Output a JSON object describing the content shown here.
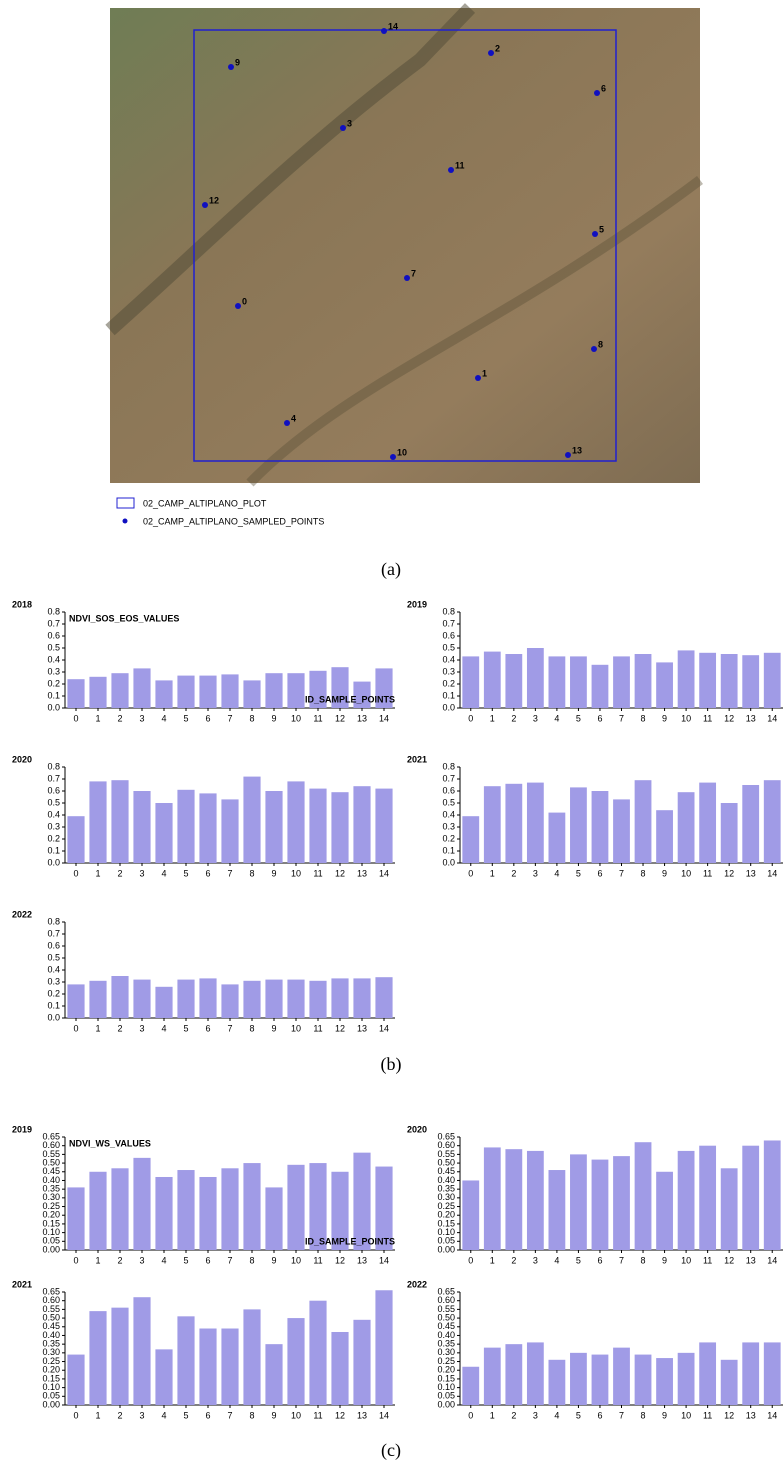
{
  "figure": {
    "map": {
      "points": [
        "0",
        "1",
        "2",
        "3",
        "4",
        "5",
        "6",
        "7",
        "8",
        "9",
        "10",
        "11",
        "12",
        "13",
        "14"
      ],
      "legend": [
        "02_CAMP_ALTIPLANO_PLOT",
        "02_CAMP_ALTIPLANO_SAMPLED_POINTS"
      ]
    },
    "panel_labels": [
      "(a)",
      "(b)",
      "(c)"
    ]
  },
  "chart_data": [
    {
      "type": "bar",
      "title": "2018",
      "annotation": "NDVI_SOS_EOS_VALUES",
      "x_label": "ID_SAMPLE_POINTS",
      "color": "#a09be6",
      "categories": [
        "0",
        "1",
        "2",
        "3",
        "4",
        "5",
        "6",
        "7",
        "8",
        "9",
        "10",
        "11",
        "12",
        "13",
        "14"
      ],
      "values": [
        0.24,
        0.26,
        0.29,
        0.33,
        0.23,
        0.27,
        0.27,
        0.28,
        0.23,
        0.29,
        0.29,
        0.31,
        0.34,
        0.22,
        0.33
      ],
      "ylim": [
        0,
        0.8
      ],
      "yticks": [
        {
          "value": 0,
          "label": "0.0"
        },
        0.1,
        0.2,
        0.3,
        0.4,
        0.5,
        0.6,
        0.7,
        0.8
      ]
    },
    {
      "type": "bar",
      "title": "2019",
      "color": "#a09be6",
      "categories": [
        "0",
        "1",
        "2",
        "3",
        "4",
        "5",
        "6",
        "7",
        "8",
        "9",
        "10",
        "11",
        "12",
        "13",
        "14"
      ],
      "values": [
        0.43,
        0.47,
        0.45,
        0.5,
        0.43,
        0.43,
        0.36,
        0.43,
        0.45,
        0.38,
        0.48,
        0.46,
        0.45,
        0.44,
        0.46
      ],
      "ylim": [
        0,
        0.8
      ],
      "yticks": [
        {
          "value": 0,
          "label": "0.0"
        },
        0.1,
        0.2,
        0.3,
        0.4,
        0.5,
        0.6,
        0.7,
        0.8
      ]
    },
    {
      "type": "bar",
      "title": "2020",
      "color": "#a09be6",
      "categories": [
        "0",
        "1",
        "2",
        "3",
        "4",
        "5",
        "6",
        "7",
        "8",
        "9",
        "10",
        "11",
        "12",
        "13",
        "14"
      ],
      "values": [
        0.39,
        0.68,
        0.69,
        0.6,
        0.5,
        0.61,
        0.58,
        0.53,
        0.72,
        0.6,
        0.68,
        0.62,
        0.59,
        0.64,
        0.62
      ],
      "ylim": [
        0,
        0.8
      ],
      "yticks": [
        {
          "value": 0,
          "label": "0.0"
        },
        0.1,
        0.2,
        0.3,
        0.4,
        0.5,
        0.6,
        0.7,
        0.8
      ]
    },
    {
      "type": "bar",
      "title": "2021",
      "color": "#a09be6",
      "categories": [
        "0",
        "1",
        "2",
        "3",
        "4",
        "5",
        "6",
        "7",
        "8",
        "9",
        "10",
        "11",
        "12",
        "13",
        "14"
      ],
      "values": [
        0.39,
        0.64,
        0.66,
        0.67,
        0.42,
        0.63,
        0.6,
        0.53,
        0.69,
        0.44,
        0.59,
        0.67,
        0.5,
        0.65,
        0.69
      ],
      "ylim": [
        0,
        0.8
      ],
      "yticks": [
        {
          "value": 0,
          "label": "0.0"
        },
        0.1,
        0.2,
        0.3,
        0.4,
        0.5,
        0.6,
        0.7,
        0.8
      ]
    },
    {
      "type": "bar",
      "title": "2022",
      "color": "#a09be6",
      "categories": [
        "0",
        "1",
        "2",
        "3",
        "4",
        "5",
        "6",
        "7",
        "8",
        "9",
        "10",
        "11",
        "12",
        "13",
        "14"
      ],
      "values": [
        0.28,
        0.31,
        0.35,
        0.32,
        0.26,
        0.32,
        0.33,
        0.28,
        0.31,
        0.32,
        0.32,
        0.31,
        0.33,
        0.33,
        0.34
      ],
      "ylim": [
        0,
        0.8
      ],
      "yticks": [
        {
          "value": 0,
          "label": "0.0"
        },
        0.1,
        0.2,
        0.3,
        0.4,
        0.5,
        0.6,
        0.7,
        0.8
      ]
    },
    {
      "type": "bar",
      "title": "2019",
      "annotation": "NDVI_WS_VALUES",
      "x_label": "ID_SAMPLE_POINTS",
      "color": "#a09be6",
      "categories": [
        "0",
        "1",
        "2",
        "3",
        "4",
        "5",
        "6",
        "7",
        "8",
        "9",
        "10",
        "11",
        "12",
        "13",
        "14"
      ],
      "values": [
        0.36,
        0.45,
        0.47,
        0.53,
        0.42,
        0.46,
        0.42,
        0.47,
        0.5,
        0.36,
        0.49,
        0.5,
        0.45,
        0.56,
        0.48
      ],
      "ylim": [
        0,
        0.65
      ],
      "yticks": [
        {
          "value": 0,
          "label": "0.00"
        },
        0.05,
        {
          "value": 0.1,
          "label": "0.10"
        },
        0.15,
        {
          "value": 0.2,
          "label": "0.20"
        },
        0.25,
        {
          "value": 0.3,
          "label": "0.30"
        },
        0.35,
        {
          "value": 0.4,
          "label": "0.40"
        },
        0.45,
        {
          "value": 0.5,
          "label": "0.50"
        },
        0.55,
        {
          "value": 0.6,
          "label": "0.60"
        },
        0.65
      ]
    },
    {
      "type": "bar",
      "title": "2020",
      "color": "#a09be6",
      "categories": [
        "0",
        "1",
        "2",
        "3",
        "4",
        "5",
        "6",
        "7",
        "8",
        "9",
        "10",
        "11",
        "12",
        "13",
        "14"
      ],
      "values": [
        0.4,
        0.59,
        0.58,
        0.57,
        0.46,
        0.55,
        0.52,
        0.54,
        0.62,
        0.45,
        0.57,
        0.6,
        0.47,
        0.6,
        0.63
      ],
      "ylim": [
        0,
        0.65
      ],
      "yticks": [
        {
          "value": 0,
          "label": "0.00"
        },
        0.05,
        {
          "value": 0.1,
          "label": "0.10"
        },
        0.15,
        {
          "value": 0.2,
          "label": "0.20"
        },
        0.25,
        {
          "value": 0.3,
          "label": "0.30"
        },
        0.35,
        {
          "value": 0.4,
          "label": "0.40"
        },
        0.45,
        {
          "value": 0.5,
          "label": "0.50"
        },
        0.55,
        {
          "value": 0.6,
          "label": "0.60"
        },
        0.65
      ]
    },
    {
      "type": "bar",
      "title": "2021",
      "color": "#a09be6",
      "categories": [
        "0",
        "1",
        "2",
        "3",
        "4",
        "5",
        "6",
        "7",
        "8",
        "9",
        "10",
        "11",
        "12",
        "13",
        "14"
      ],
      "values": [
        0.29,
        0.54,
        0.56,
        0.62,
        0.32,
        0.51,
        0.44,
        0.44,
        0.55,
        0.35,
        0.5,
        0.6,
        0.42,
        0.49,
        0.66
      ],
      "ylim": [
        0,
        0.65
      ],
      "yticks": [
        {
          "value": 0,
          "label": "0.00"
        },
        0.05,
        {
          "value": 0.1,
          "label": "0.10"
        },
        0.15,
        {
          "value": 0.2,
          "label": "0.20"
        },
        0.25,
        {
          "value": 0.3,
          "label": "0.30"
        },
        0.35,
        {
          "value": 0.4,
          "label": "0.40"
        },
        0.45,
        {
          "value": 0.5,
          "label": "0.50"
        },
        0.55,
        {
          "value": 0.6,
          "label": "0.60"
        },
        0.65
      ]
    },
    {
      "type": "bar",
      "title": "2022",
      "color": "#a09be6",
      "categories": [
        "0",
        "1",
        "2",
        "3",
        "4",
        "5",
        "6",
        "7",
        "8",
        "9",
        "10",
        "11",
        "12",
        "13",
        "14"
      ],
      "values": [
        0.22,
        0.33,
        0.35,
        0.36,
        0.26,
        0.3,
        0.29,
        0.33,
        0.29,
        0.27,
        0.3,
        0.36,
        0.26,
        0.36,
        0.36
      ],
      "ylim": [
        0,
        0.65
      ],
      "yticks": [
        {
          "value": 0,
          "label": "0.00"
        },
        0.05,
        {
          "value": 0.1,
          "label": "0.10"
        },
        0.15,
        {
          "value": 0.2,
          "label": "0.20"
        },
        0.25,
        {
          "value": 0.3,
          "label": "0.30"
        },
        0.35,
        {
          "value": 0.4,
          "label": "0.40"
        },
        0.45,
        {
          "value": 0.5,
          "label": "0.50"
        },
        0.55,
        {
          "value": 0.6,
          "label": "0.60"
        },
        0.65
      ]
    }
  ]
}
